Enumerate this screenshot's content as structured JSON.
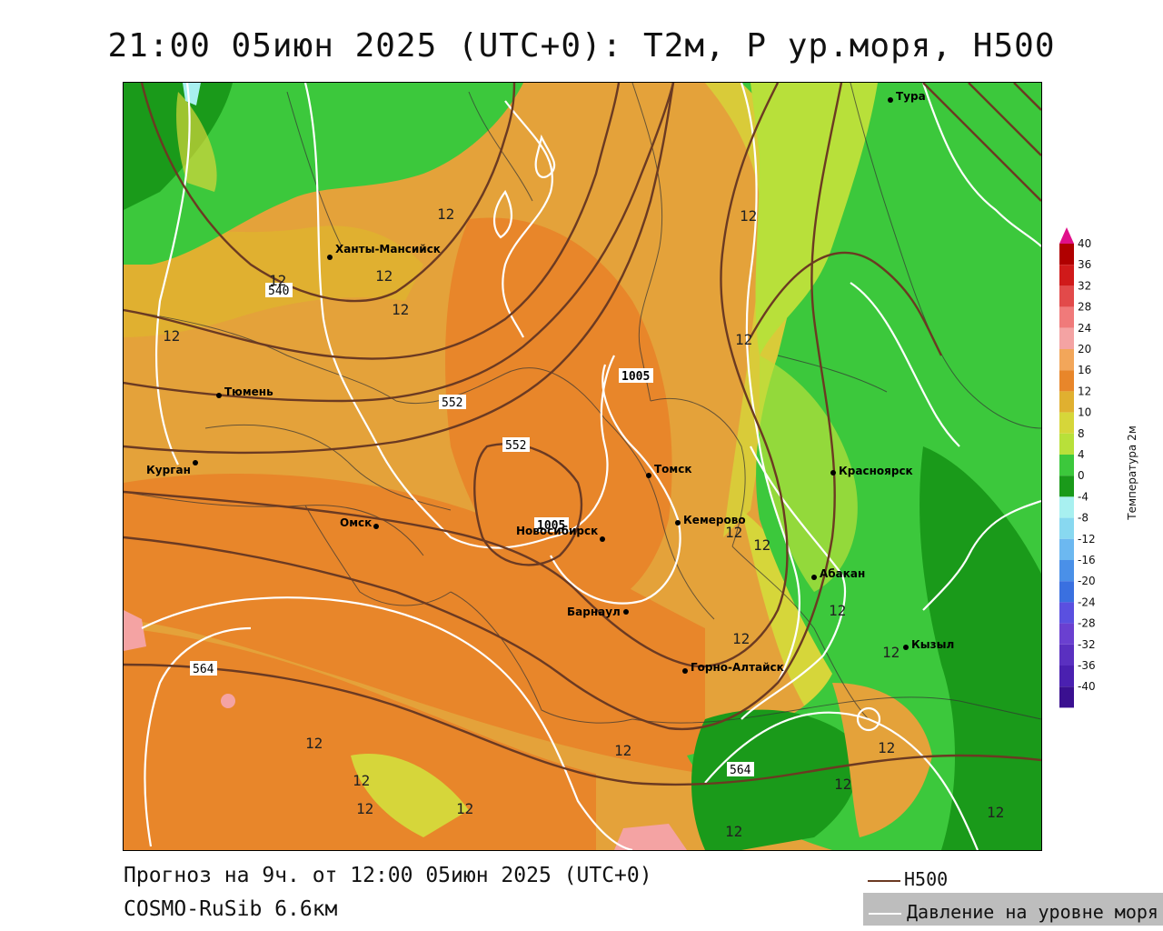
{
  "title": "21:00 05июн 2025 (UTC+0): T2м, P ур.моря, H500",
  "forecast_line": "Прогноз на 9ч. от 12:00 05июн 2025 (UTC+0)",
  "model_line": "COSMO-RuSib 6.6км",
  "legend_keys": {
    "h500": "H500",
    "pressure": "Давление на уровне моря"
  },
  "colorbar": {
    "title": "Температура 2м",
    "ticks": [
      "40",
      "36",
      "32",
      "28",
      "24",
      "20",
      "16",
      "12",
      "10",
      "8",
      "4",
      "0",
      "-4",
      "-8",
      "-12",
      "-16",
      "-20",
      "-24",
      "-28",
      "-32",
      "-36",
      "-40"
    ],
    "colors": [
      "#b00000",
      "#d01a1a",
      "#e24a4a",
      "#f07a7a",
      "#f4a3a3",
      "#f2a65a",
      "#e8862a",
      "#e0b030",
      "#d6d63a",
      "#b8e03a",
      "#3cc83c",
      "#1a9a1a",
      "#a8f0f0",
      "#88d8f0",
      "#6cb8f0",
      "#4a90e8",
      "#3a70e0",
      "#5a50e0",
      "#6a40d0",
      "#5a30c0",
      "#4a20b0",
      "#3a1090"
    ]
  },
  "cities": [
    {
      "name": "Тура"
    },
    {
      "name": "Ханты-Мансийск"
    },
    {
      "name": "Тюмень"
    },
    {
      "name": "Курган"
    },
    {
      "name": "Омск"
    },
    {
      "name": "Новосибирск"
    },
    {
      "name": "Томск"
    },
    {
      "name": "Кемерово"
    },
    {
      "name": "Красноярск"
    },
    {
      "name": "Абакан"
    },
    {
      "name": "Барнаул"
    },
    {
      "name": "Горно-Алтайск"
    },
    {
      "name": "Кызыл"
    }
  ],
  "contour_labels": {
    "h500": [
      "552",
      "552",
      "564",
      "564"
    ],
    "pressure": [
      "1005",
      "1005"
    ],
    "h500_partial": "540",
    "temp": "12"
  }
}
